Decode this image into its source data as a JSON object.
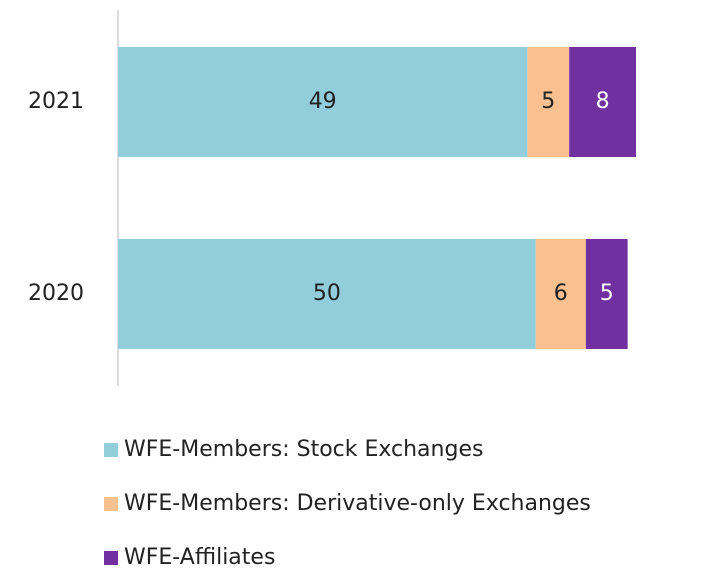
{
  "chart_data": {
    "type": "stacked_bar_horizontal",
    "categories": [
      "2021",
      "2020"
    ],
    "series": [
      {
        "name": "WFE-Members: Stock Exchanges",
        "color": "#92cddc",
        "values": [
          49,
          50
        ]
      },
      {
        "name": "WFE-Members: Derivative-only Exchanges",
        "color": "#fac090",
        "values": [
          5,
          6
        ]
      },
      {
        "name": "WFE-Affiliates",
        "color": "#7030a0",
        "values": [
          8,
          5
        ]
      }
    ]
  }
}
